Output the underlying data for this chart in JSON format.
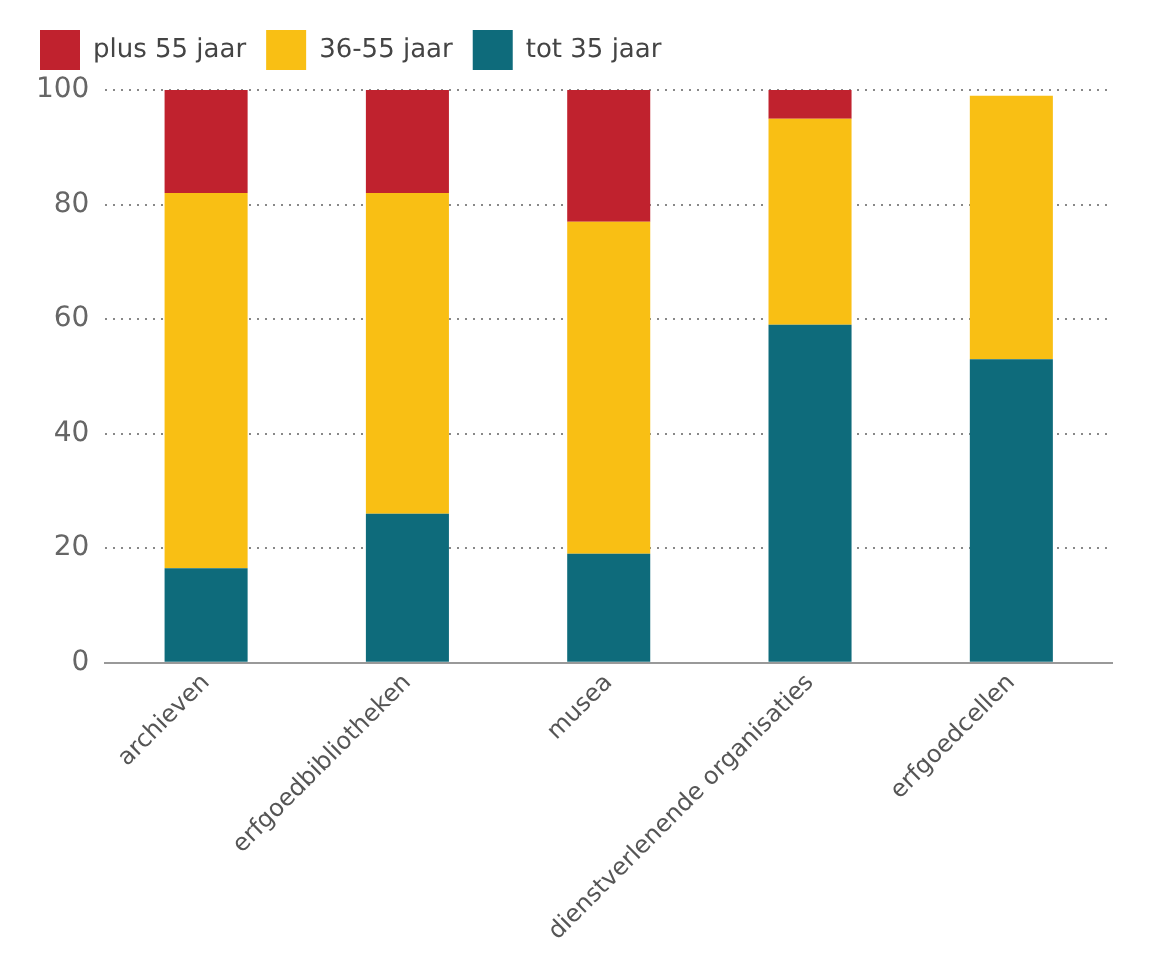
{
  "chart_data": {
    "type": "bar",
    "stacked": true,
    "categories": [
      "archieven",
      "erfgoedbibliotheken",
      "musea",
      "dienstverlenende organisaties",
      "erfgoedcellen"
    ],
    "series": [
      {
        "name": "tot 35 jaar",
        "color": "#0e6b7b",
        "values": [
          16.5,
          26,
          19,
          59,
          53
        ]
      },
      {
        "name": "36-55 jaar",
        "color": "#f9bf14",
        "values": [
          65.5,
          56,
          58,
          36,
          46
        ]
      },
      {
        "name": "plus 55 jaar",
        "color": "#c0222e",
        "values": [
          18,
          18,
          23,
          5,
          null
        ]
      }
    ],
    "ylim": [
      0,
      100
    ],
    "yticks": [
      0,
      20,
      40,
      60,
      80,
      100
    ],
    "grid": "y",
    "legend": "top left"
  }
}
